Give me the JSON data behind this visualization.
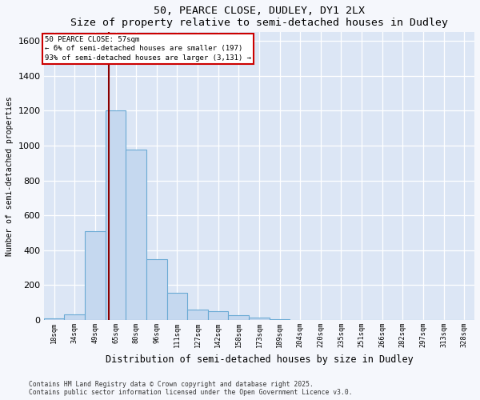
{
  "title1": "50, PEARCE CLOSE, DUDLEY, DY1 2LX",
  "title2": "Size of property relative to semi-detached houses in Dudley",
  "xlabel": "Distribution of semi-detached houses by size in Dudley",
  "ylabel": "Number of semi-detached properties",
  "categories": [
    "18sqm",
    "34sqm",
    "49sqm",
    "65sqm",
    "80sqm",
    "96sqm",
    "111sqm",
    "127sqm",
    "142sqm",
    "158sqm",
    "173sqm",
    "189sqm",
    "204sqm",
    "220sqm",
    "235sqm",
    "251sqm",
    "266sqm",
    "282sqm",
    "297sqm",
    "313sqm",
    "328sqm"
  ],
  "values": [
    8,
    32,
    510,
    1200,
    975,
    350,
    155,
    60,
    50,
    25,
    12,
    5,
    2,
    1,
    1,
    0,
    0,
    0,
    0,
    0,
    0
  ],
  "bar_color": "#c5d8ef",
  "bar_edge_color": "#6aaad4",
  "vline_x": 2.67,
  "vline_color": "#8b0000",
  "annotation_title": "50 PEARCE CLOSE: 57sqm",
  "annotation_line1": "← 6% of semi-detached houses are smaller (197)",
  "annotation_line2": "93% of semi-detached houses are larger (3,131) →",
  "annotation_box_color": "#cc0000",
  "footer1": "Contains HM Land Registry data © Crown copyright and database right 2025.",
  "footer2": "Contains public sector information licensed under the Open Government Licence v3.0.",
  "ylim": [
    0,
    1650
  ],
  "fig_background": "#f5f7fc",
  "plot_background": "#dce6f5"
}
